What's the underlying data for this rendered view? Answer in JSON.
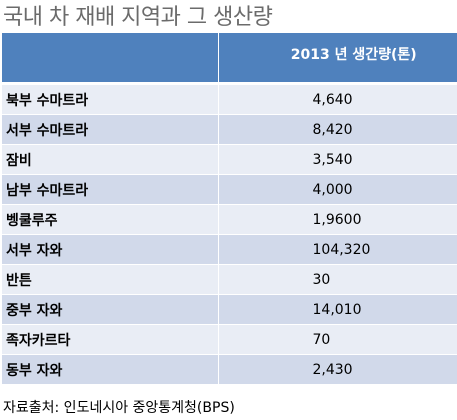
{
  "title": "국내 차 재배 지역과 그 생산량",
  "table": {
    "header": {
      "region": "",
      "production": "2013 년 생간량(톤)"
    },
    "rows": [
      {
        "region": "북부 수마트라",
        "production": "4,640"
      },
      {
        "region": "서부 수마트라",
        "production": "8,420"
      },
      {
        "region": "잠비",
        "production": "3,540"
      },
      {
        "region": "남부 수마트라",
        "production": "4,000"
      },
      {
        "region": "벵쿨루주",
        "production": "1,9600"
      },
      {
        "region": "서부 자와",
        "production": "104,320"
      },
      {
        "region": "반튼",
        "production": "30"
      },
      {
        "region": "중부 자와",
        "production": "14,010"
      },
      {
        "region": "족자카르타",
        "production": "70"
      },
      {
        "region": "동부 자와",
        "production": "2,430"
      }
    ]
  },
  "source": "자료출처: 인도네시아 중앙통계청(BPS)",
  "colors": {
    "header_bg": "#4f81bd",
    "row_light": "#e9edf5",
    "row_dark": "#d1d9ea",
    "title": "#6b6b6b"
  }
}
